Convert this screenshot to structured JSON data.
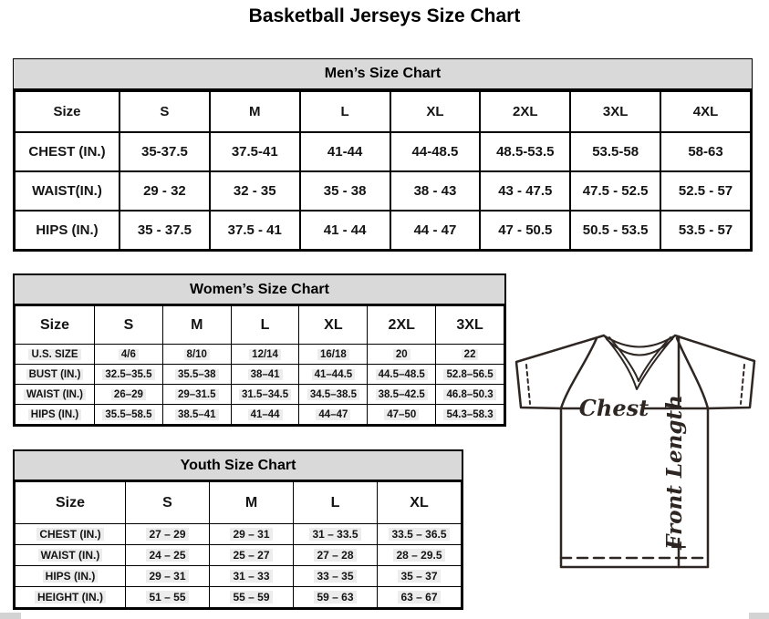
{
  "page_title": "Basketball Jerseys Size Chart",
  "mens_chart": {
    "title": "Men’s Size Chart",
    "columns": [
      "Size",
      "S",
      "M",
      "L",
      "XL",
      "2XL",
      "3XL",
      "4XL"
    ],
    "rows": [
      {
        "label": "CHEST (IN.)",
        "values": [
          "35-37.5",
          "37.5-41",
          "41-44",
          "44-48.5",
          "48.5-53.5",
          "53.5-58",
          "58-63"
        ]
      },
      {
        "label": "WAIST(IN.)",
        "values": [
          "29 - 32",
          "32 - 35",
          "35 - 38",
          "38 - 43",
          "43 - 47.5",
          "47.5 - 52.5",
          "52.5 - 57"
        ]
      },
      {
        "label": "HIPS (IN.)",
        "values": [
          "35 - 37.5",
          "37.5 - 41",
          "41 - 44",
          "44 - 47",
          "47 - 50.5",
          "50.5 - 53.5",
          "53.5 - 57"
        ]
      }
    ]
  },
  "womens_chart": {
    "title": "Women’s Size Chart",
    "columns": [
      "Size",
      "S",
      "M",
      "L",
      "XL",
      "2XL",
      "3XL"
    ],
    "rows": [
      {
        "label": "U.S. SIZE",
        "values": [
          "4/6",
          "8/10",
          "12/14",
          "16/18",
          "20",
          "22"
        ]
      },
      {
        "label": "BUST (IN.)",
        "values": [
          "32.5–35.5",
          "35.5–38",
          "38–41",
          "41–44.5",
          "44.5–48.5",
          "52.8–56.5"
        ]
      },
      {
        "label": "WAIST (IN.)",
        "values": [
          "26–29",
          "29–31.5",
          "31.5–34.5",
          "34.5–38.5",
          "38.5–42.5",
          "46.8–50.3"
        ]
      },
      {
        "label": "HIPS (IN.)",
        "values": [
          "35.5–58.5",
          "38.5–41",
          "41–44",
          "44–47",
          "47–50",
          "54.3–58.3"
        ]
      }
    ]
  },
  "youth_chart": {
    "title": "Youth Size Chart",
    "columns": [
      "Size",
      "S",
      "M",
      "L",
      "XL"
    ],
    "rows": [
      {
        "label": "CHEST (IN.)",
        "values": [
          "27 – 29",
          "29 – 31",
          "31 – 33.5",
          "33.5 – 36.5"
        ]
      },
      {
        "label": "WAIST (IN.)",
        "values": [
          "24 – 25",
          "25 – 27",
          "27 – 28",
          "28 – 29.5"
        ]
      },
      {
        "label": "HIPS (IN.)",
        "values": [
          "29 – 31",
          "31 – 33",
          "33 – 35",
          "35 – 37"
        ]
      },
      {
        "label": "HEIGHT (IN.)",
        "values": [
          "51 – 55",
          "55 – 59",
          "59 – 63",
          "63 – 67"
        ]
      }
    ]
  },
  "diagram": {
    "chest_label": "Chest",
    "front_length_label": "Front Length"
  },
  "colors": {
    "header_band": "#d9d9d9",
    "table_border": "#000000",
    "cell_highlight": "#ededed",
    "diagram_line": "#2e2622",
    "corner_fragment": "#d3d3d3"
  }
}
